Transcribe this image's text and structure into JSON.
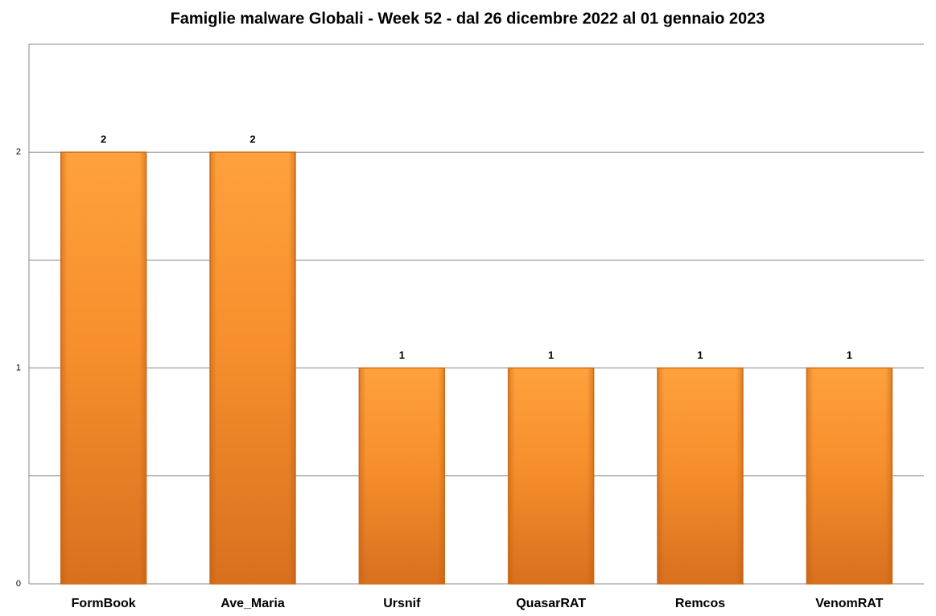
{
  "chart_data": {
    "type": "bar",
    "title": "Famiglie malware Globali - Week 52 - dal 26 dicembre 2022 al 01 gennaio 2023",
    "categories": [
      "FormBook",
      "Ave_Maria",
      "Ursnif",
      "QuasarRAT",
      "Remcos",
      "VenomRAT"
    ],
    "values": [
      2,
      2,
      1,
      1,
      1,
      1
    ],
    "color": "#f7922e",
    "ylim": [
      0,
      2.5
    ],
    "yticks": [
      0,
      1,
      2
    ],
    "minor_grid": [
      0.5,
      1.5
    ],
    "grid": true
  }
}
